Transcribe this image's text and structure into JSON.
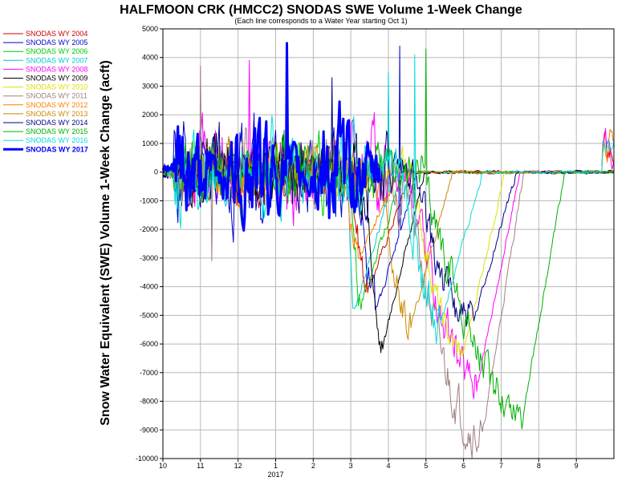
{
  "chart_data": {
    "type": "line",
    "title": "HALFMOON CRK (HMCC2) SNODAS SWE Volume 1-Week Change",
    "subtitle": "(Each line corresponds to a Water Year starting Oct 1)",
    "ylabel": "Snow Water Equivalent (SWE) Volume 1-Week Change (acft)",
    "xlabel": "",
    "ylim": [
      -10000,
      5000
    ],
    "yticks": [
      5000,
      4000,
      3000,
      2000,
      1000,
      0,
      -1000,
      -2000,
      -3000,
      -4000,
      -5000,
      -6000,
      -7000,
      -8000,
      -9000,
      -10000
    ],
    "xlim": [
      0,
      12
    ],
    "xticks": [
      {
        "pos": 0,
        "label": "10"
      },
      {
        "pos": 1,
        "label": "11"
      },
      {
        "pos": 2,
        "label": "12"
      },
      {
        "pos": 3,
        "label": "1"
      },
      {
        "pos": 4,
        "label": "2"
      },
      {
        "pos": 5,
        "label": "3"
      },
      {
        "pos": 6,
        "label": "4"
      },
      {
        "pos": 7,
        "label": "5"
      },
      {
        "pos": 8,
        "label": "6"
      },
      {
        "pos": 9,
        "label": "7"
      },
      {
        "pos": 10,
        "label": "8"
      },
      {
        "pos": 11,
        "label": "9"
      }
    ],
    "year_label": {
      "pos": 3,
      "label": "2017"
    },
    "grid": true,
    "legend_position": "left",
    "series": [
      {
        "name": "SNODAS WY 2004",
        "color": "#cc0000",
        "width": 1,
        "meltStart": 5.0,
        "minWeek": 5.5,
        "minVal": -4000,
        "amp": 900,
        "end": 12
      },
      {
        "name": "SNODAS WY 2005",
        "color": "#0000cc",
        "width": 1,
        "meltStart": 5.2,
        "minWeek": 5.65,
        "minVal": -5000,
        "amp": 1700,
        "spike": [
          6.3,
          4400
        ],
        "end": 12
      },
      {
        "name": "SNODAS WY 2006",
        "color": "#00cc00",
        "width": 1,
        "meltStart": 5.0,
        "minWeek": 5.3,
        "minVal": -4500,
        "amp": 1100,
        "end": 12
      },
      {
        "name": "SNODAS WY 2007",
        "color": "#00cccc",
        "width": 1,
        "meltStart": 4.9,
        "minWeek": 5.1,
        "minVal": -4800,
        "amp": 900,
        "spike": [
          6.0,
          3500
        ],
        "end": 12
      },
      {
        "name": "SNODAS WY 2008",
        "color": "#ff00ff",
        "width": 1,
        "meltStart": 6.5,
        "minWeek": 8.4,
        "minVal": -7200,
        "amp": 1300,
        "spike": [
          2.3,
          3900
        ],
        "end": 12
      },
      {
        "name": "SNODAS WY 2009",
        "color": "#000000",
        "width": 1,
        "meltStart": 5.4,
        "minWeek": 5.85,
        "minVal": -6100,
        "amp": 1000,
        "end": 12
      },
      {
        "name": "SNODAS WY 2010",
        "color": "#e0e000",
        "width": 1,
        "meltStart": 6.6,
        "minWeek": 8.0,
        "minVal": -6300,
        "amp": 800,
        "end": 12
      },
      {
        "name": "SNODAS WY 2011",
        "color": "#a08080",
        "width": 1,
        "meltStart": 6.4,
        "minWeek": 8.5,
        "minVal": -9200,
        "amp": 1300,
        "spike": [
          1.0,
          3700
        ],
        "dip": [
          1.3,
          -3100
        ],
        "end": 12
      },
      {
        "name": "SNODAS WY 2012",
        "color": "#ff8000",
        "width": 1,
        "meltStart": 4.8,
        "minWeek": 5.2,
        "minVal": -3000,
        "amp": 900,
        "end": 12
      },
      {
        "name": "SNODAS WY 2013",
        "color": "#cc8800",
        "width": 1,
        "meltStart": 5.8,
        "minWeek": 6.6,
        "minVal": -5400,
        "amp": 900,
        "end": 12
      },
      {
        "name": "SNODAS WY 2014",
        "color": "#000080",
        "width": 1,
        "meltStart": 6.6,
        "minWeek": 8.3,
        "minVal": -5100,
        "amp": 1200,
        "spike": [
          4.5,
          3300
        ],
        "end": 12
      },
      {
        "name": "SNODAS WY 2015",
        "color": "#00b000",
        "width": 1,
        "meltStart": 6.9,
        "minWeek": 9.6,
        "minVal": -8300,
        "amp": 1100,
        "spike": [
          7.0,
          4300
        ],
        "end": 12
      },
      {
        "name": "SNODAS WY 2016",
        "color": "#00dddd",
        "width": 1,
        "meltStart": 6.3,
        "minWeek": 7.4,
        "minVal": -5200,
        "amp": 1300,
        "spike": [
          6.7,
          4100
        ],
        "end": 12
      },
      {
        "name": "SNODAS WY 2017",
        "color": "#0000ff",
        "width": 3,
        "meltStart": 99,
        "minWeek": 99,
        "minVal": 0,
        "amp": 1600,
        "spike": [
          3.3,
          4500
        ],
        "end": 5.8
      }
    ]
  }
}
